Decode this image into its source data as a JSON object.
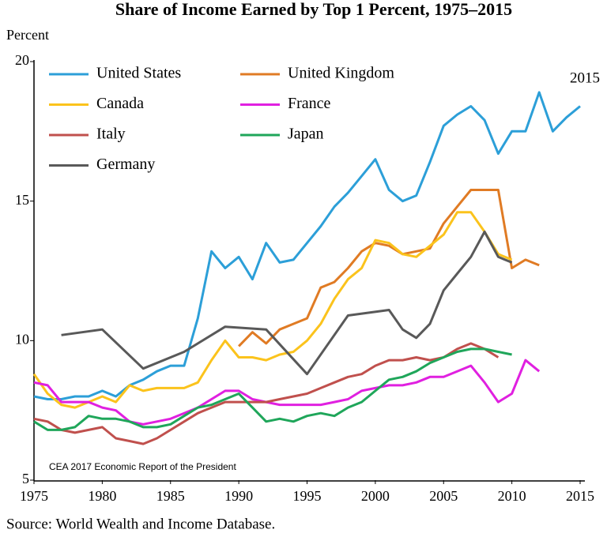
{
  "chart_data": {
    "type": "line",
    "title": "Share of Income Earned by Top 1 Percent, 1975–2015",
    "y_label": "Percent",
    "annotations": [
      "2015",
      "CEA 2017 Economic Report of the President"
    ],
    "source": "Source: World Wealth and Income Database.",
    "xlim": [
      1975,
      2015
    ],
    "xticks": [
      1975,
      1980,
      1985,
      1990,
      1995,
      2000,
      2005,
      2010,
      2015
    ],
    "ylim": [
      5,
      20
    ],
    "yticks": [
      5,
      10,
      15,
      20
    ],
    "grid": false,
    "legend": "top-left",
    "series": [
      {
        "name": "United States",
        "color": "#2c9fd8",
        "x": [
          1975,
          1976,
          1977,
          1978,
          1979,
          1980,
          1981,
          1982,
          1983,
          1984,
          1985,
          1986,
          1987,
          1988,
          1989,
          1990,
          1991,
          1992,
          1993,
          1994,
          1995,
          1996,
          1997,
          1998,
          1999,
          2000,
          2001,
          2002,
          2003,
          2004,
          2005,
          2006,
          2007,
          2008,
          2009,
          2010,
          2011,
          2012,
          2013,
          2014,
          2015
        ],
        "values": [
          8.0,
          7.9,
          7.9,
          8.0,
          8.0,
          8.2,
          8.0,
          8.4,
          8.6,
          8.9,
          9.1,
          9.1,
          10.8,
          13.2,
          12.6,
          13.0,
          12.2,
          13.5,
          12.8,
          12.9,
          13.5,
          14.1,
          14.8,
          15.3,
          15.9,
          16.5,
          15.4,
          15.0,
          15.2,
          16.4,
          17.7,
          18.1,
          18.4,
          17.9,
          16.7,
          17.5,
          17.5,
          18.9,
          17.5,
          18.0,
          18.4
        ]
      },
      {
        "name": "United Kingdom",
        "color": "#e07b24",
        "x": [
          1990,
          1991,
          1992,
          1993,
          1994,
          1995,
          1996,
          1997,
          1998,
          1999,
          2000,
          2001,
          2002,
          2003,
          2004,
          2005,
          2006,
          2007,
          2008,
          2009,
          2010,
          2011,
          2012
        ],
        "values": [
          9.8,
          10.3,
          9.9,
          10.4,
          10.6,
          10.8,
          11.9,
          12.1,
          12.6,
          13.2,
          13.5,
          13.4,
          13.1,
          13.2,
          13.3,
          14.2,
          14.8,
          15.4,
          15.4,
          15.4,
          12.6,
          12.9,
          12.7
        ]
      },
      {
        "name": "Canada",
        "color": "#fbc31c",
        "x": [
          1975,
          1976,
          1977,
          1978,
          1979,
          1980,
          1981,
          1982,
          1983,
          1984,
          1985,
          1986,
          1987,
          1988,
          1989,
          1990,
          1991,
          1992,
          1993,
          1994,
          1995,
          1996,
          1997,
          1998,
          1999,
          2000,
          2001,
          2002,
          2003,
          2004,
          2005,
          2006,
          2007,
          2008,
          2009,
          2010
        ],
        "values": [
          8.8,
          8.1,
          7.7,
          7.6,
          7.8,
          8.0,
          7.8,
          8.4,
          8.2,
          8.3,
          8.3,
          8.3,
          8.5,
          9.3,
          10.0,
          9.4,
          9.4,
          9.3,
          9.5,
          9.6,
          10.0,
          10.6,
          11.5,
          12.2,
          12.6,
          13.6,
          13.5,
          13.1,
          13.0,
          13.4,
          13.8,
          14.6,
          14.6,
          13.9,
          13.1,
          12.9
        ]
      },
      {
        "name": "France",
        "color": "#e020e0",
        "x": [
          1975,
          1976,
          1977,
          1978,
          1979,
          1980,
          1981,
          1982,
          1983,
          1984,
          1985,
          1986,
          1987,
          1988,
          1989,
          1990,
          1991,
          1992,
          1993,
          1994,
          1995,
          1996,
          1997,
          1998,
          1999,
          2000,
          2001,
          2002,
          2003,
          2004,
          2005,
          2006,
          2007,
          2008,
          2009,
          2010,
          2011,
          2012
        ],
        "values": [
          8.5,
          8.4,
          7.8,
          7.8,
          7.8,
          7.6,
          7.5,
          7.1,
          7.0,
          7.1,
          7.2,
          7.4,
          7.6,
          7.9,
          8.2,
          8.2,
          7.9,
          7.8,
          7.7,
          7.7,
          7.7,
          7.7,
          7.8,
          7.9,
          8.2,
          8.3,
          8.4,
          8.4,
          8.5,
          8.7,
          8.7,
          8.9,
          9.1,
          8.5,
          7.8,
          8.1,
          9.3,
          8.9
        ]
      },
      {
        "name": "Italy",
        "color": "#c0504d",
        "x": [
          1975,
          1976,
          1977,
          1978,
          1979,
          1980,
          1981,
          1982,
          1983,
          1984,
          1985,
          1986,
          1987,
          1988,
          1989,
          1990,
          1991,
          1992,
          1993,
          1994,
          1995,
          1996,
          1997,
          1998,
          1999,
          2000,
          2001,
          2002,
          2003,
          2004,
          2005,
          2006,
          2007,
          2008,
          2009
        ],
        "values": [
          7.2,
          7.1,
          6.8,
          6.7,
          6.8,
          6.9,
          6.5,
          6.4,
          6.3,
          6.5,
          6.8,
          7.1,
          7.4,
          7.6,
          7.8,
          7.8,
          7.8,
          7.8,
          7.9,
          8.0,
          8.1,
          8.3,
          8.5,
          8.7,
          8.8,
          9.1,
          9.3,
          9.3,
          9.4,
          9.3,
          9.4,
          9.7,
          9.9,
          9.7,
          9.4
        ]
      },
      {
        "name": "Japan",
        "color": "#1fa65a",
        "x": [
          1975,
          1976,
          1977,
          1978,
          1979,
          1980,
          1981,
          1982,
          1983,
          1984,
          1985,
          1986,
          1987,
          1988,
          1989,
          1990,
          1991,
          1992,
          1993,
          1994,
          1995,
          1996,
          1997,
          1998,
          1999,
          2000,
          2001,
          2002,
          2003,
          2004,
          2005,
          2006,
          2007,
          2008,
          2009,
          2010
        ],
        "values": [
          7.1,
          6.8,
          6.8,
          6.9,
          7.3,
          7.2,
          7.2,
          7.1,
          6.9,
          6.9,
          7.0,
          7.3,
          7.6,
          7.7,
          7.9,
          8.1,
          7.6,
          7.1,
          7.2,
          7.1,
          7.3,
          7.4,
          7.3,
          7.6,
          7.8,
          8.2,
          8.6,
          8.7,
          8.9,
          9.2,
          9.4,
          9.6,
          9.7,
          9.7,
          9.6,
          9.5
        ]
      },
      {
        "name": "Germany",
        "color": "#595959",
        "x": [
          1977,
          1980,
          1983,
          1986,
          1989,
          1992,
          1995,
          1998,
          2001,
          2002,
          2003,
          2004,
          2005,
          2006,
          2007,
          2008,
          2009,
          2010
        ],
        "values": [
          10.2,
          10.4,
          9.0,
          9.6,
          10.5,
          10.4,
          8.8,
          10.9,
          11.1,
          10.4,
          10.1,
          10.6,
          11.8,
          12.4,
          13.0,
          13.9,
          13.0,
          12.8
        ]
      }
    ]
  }
}
